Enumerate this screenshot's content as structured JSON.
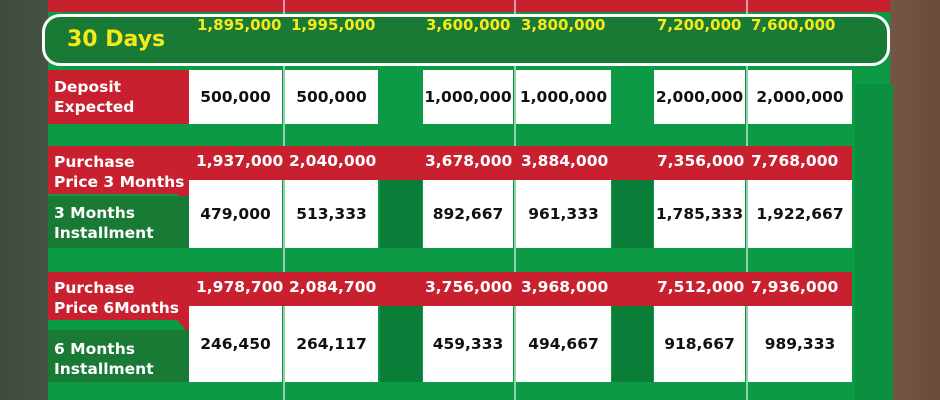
{
  "banner": {
    "label": "30 Days",
    "values": [
      "1,895,000",
      "1,995,000",
      "3,600,000",
      "3,800,000",
      "7,200,000",
      "7,600,000"
    ]
  },
  "deposit": {
    "label_line1": "Deposit",
    "label_line2": "Expected",
    "values": [
      "500,000",
      "500,000",
      "1,000,000",
      "1,000,000",
      "2,000,000",
      "2,000,000"
    ]
  },
  "purchase3": {
    "label_line1": "Purchase",
    "label_line2": "Price 3 Months",
    "values": [
      "1,937,000",
      "2,040,000",
      "3,678,000",
      "3,884,000",
      "7,356,000",
      "7,768,000"
    ]
  },
  "install3": {
    "label_line1": "3 Months",
    "label_line2": "Installment",
    "values": [
      "479,000",
      "513,333",
      "892,667",
      "961,333",
      "1,785,333",
      "1,922,667"
    ]
  },
  "purchase6": {
    "label_line1": "Purchase",
    "label_line2": "Price 6Months",
    "values": [
      "1,978,700",
      "2,084,700",
      "3,756,000",
      "3,968,000",
      "7,512,000",
      "7,936,000"
    ]
  },
  "install6": {
    "label_line1": "6 Months",
    "label_line2": "Installment",
    "values": [
      "246,450",
      "264,117",
      "459,333",
      "494,667",
      "918,667",
      "989,333"
    ]
  },
  "colors": {
    "green": "#0c9a45",
    "dark_green": "#187a35",
    "red": "#c8202f",
    "yellow": "#f6ea1a",
    "white": "#ffffff"
  }
}
